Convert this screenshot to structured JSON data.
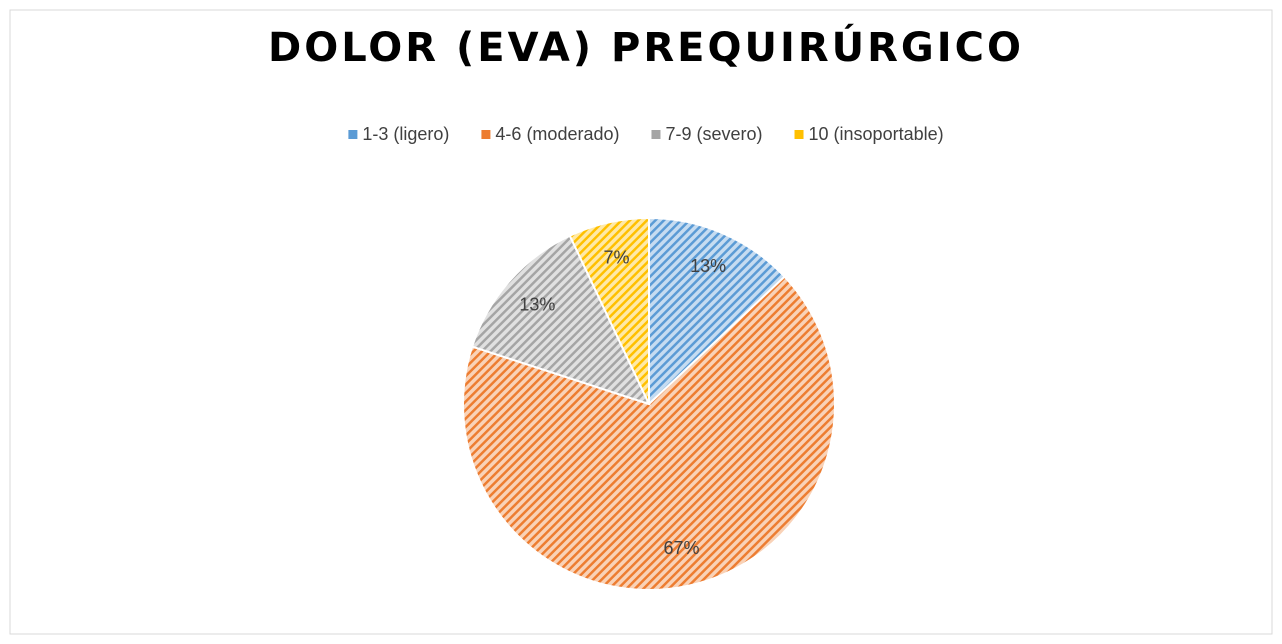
{
  "chart_data": {
    "type": "pie",
    "title": "DOLOR (EVA) PREQUIRÚRGICO",
    "categories": [
      "1-3 (ligero)",
      "4-6 (moderado)",
      "7-9 (severo)",
      "10 (insoportable)"
    ],
    "values": [
      13,
      67,
      13,
      7
    ],
    "value_labels": [
      "13%",
      "67%",
      "13%",
      "7%"
    ],
    "colors": [
      "#5b9bd5",
      "#ed7d31",
      "#a5a5a5",
      "#ffc000"
    ],
    "legend": "top"
  }
}
